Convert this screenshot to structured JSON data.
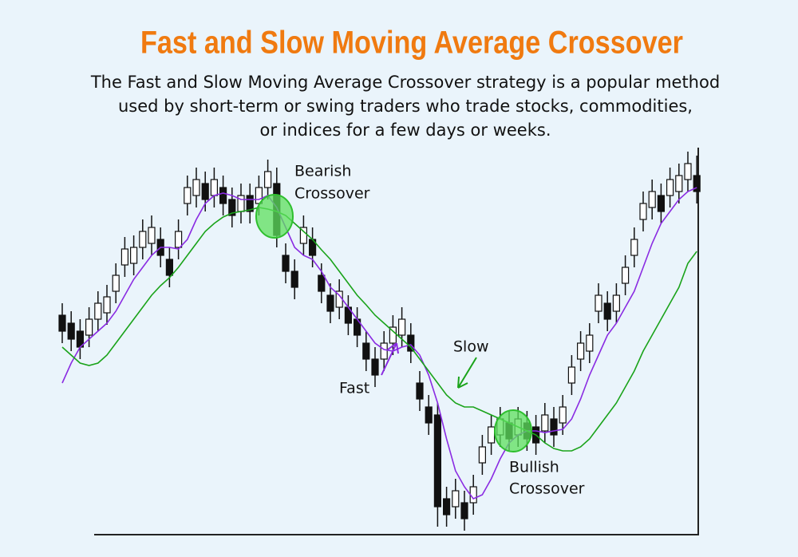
{
  "chart_data": {
    "type": "candlestick",
    "title": "Fast and Slow Moving Average Crossover",
    "description": [
      "The Fast and Slow Moving Average Crossover strategy is a popular method",
      "used by short-term or swing traders who trade stocks, commodities,",
      "or indices for a few days or weeks."
    ],
    "annotations": [
      "Bearish",
      "Crossover",
      "Slow",
      "Fast",
      "Bullish",
      "Crossover"
    ],
    "ylim": [
      0,
      485
    ],
    "up_color": "#ffffff",
    "down_color": "#111111",
    "open": [
      275,
      265,
      255,
      250,
      270,
      278,
      305,
      338,
      340,
      360,
      365,
      370,
      345,
      360,
      415,
      425,
      440,
      425,
      435,
      420,
      405,
      425,
      415,
      435,
      440,
      350,
      330,
      365,
      370,
      325,
      300,
      285,
      285,
      270,
      240,
      220,
      220,
      240,
      250,
      250,
      190,
      160,
      150,
      45,
      35,
      40,
      40,
      90,
      115,
      125,
      140,
      125,
      140,
      135,
      130,
      145,
      140,
      190,
      220,
      230,
      280,
      290,
      280,
      315,
      350,
      395,
      410,
      425,
      425,
      430,
      445,
      450
    ],
    "high": [
      290,
      280,
      270,
      285,
      305,
      313,
      340,
      373,
      375,
      395,
      400,
      385,
      360,
      395,
      450,
      460,
      455,
      460,
      450,
      435,
      440,
      440,
      450,
      470,
      460,
      365,
      345,
      400,
      385,
      340,
      315,
      320,
      300,
      285,
      255,
      235,
      255,
      275,
      285,
      265,
      205,
      175,
      165,
      60,
      70,
      55,
      75,
      125,
      150,
      160,
      155,
      160,
      155,
      150,
      165,
      160,
      175,
      225,
      255,
      265,
      315,
      305,
      315,
      350,
      385,
      430,
      445,
      440,
      460,
      465,
      480,
      475
    ],
    "low": [
      240,
      230,
      220,
      235,
      255,
      263,
      290,
      323,
      325,
      345,
      350,
      335,
      310,
      345,
      400,
      410,
      405,
      410,
      400,
      385,
      390,
      390,
      400,
      420,
      360,
      315,
      295,
      350,
      335,
      290,
      265,
      270,
      250,
      235,
      205,
      185,
      205,
      225,
      235,
      215,
      155,
      125,
      10,
      10,
      20,
      5,
      25,
      75,
      100,
      110,
      105,
      110,
      105,
      100,
      115,
      110,
      125,
      175,
      205,
      215,
      265,
      255,
      265,
      300,
      335,
      380,
      395,
      390,
      410,
      415,
      430,
      415
    ],
    "close": [
      255,
      245,
      235,
      270,
      290,
      298,
      325,
      358,
      360,
      380,
      385,
      350,
      325,
      380,
      435,
      445,
      420,
      445,
      415,
      400,
      425,
      405,
      435,
      455,
      375,
      330,
      310,
      385,
      350,
      305,
      280,
      305,
      265,
      250,
      220,
      200,
      240,
      260,
      270,
      230,
      170,
      140,
      35,
      25,
      55,
      20,
      60,
      110,
      135,
      145,
      120,
      145,
      120,
      115,
      150,
      125,
      160,
      210,
      240,
      250,
      300,
      270,
      300,
      335,
      370,
      415,
      430,
      405,
      445,
      450,
      465,
      430
    ],
    "series": [
      {
        "name": "Fast",
        "color": "#8a2be2",
        "values": [
          190,
          215,
          235,
          245,
          255,
          265,
          280,
          300,
          320,
          335,
          350,
          360,
          360,
          358,
          370,
          395,
          415,
          425,
          428,
          425,
          420,
          420,
          420,
          425,
          410,
          385,
          360,
          350,
          345,
          330,
          310,
          300,
          285,
          270,
          255,
          240,
          232,
          230,
          235,
          238,
          225,
          200,
          165,
          120,
          80,
          60,
          45,
          50,
          70,
          95,
          115,
          125,
          130,
          130,
          128,
          130,
          132,
          145,
          170,
          200,
          225,
          250,
          265,
          285,
          305,
          335,
          365,
          390,
          405,
          420,
          430,
          435
        ]
      },
      {
        "name": "Slow",
        "color": "#1aa31a",
        "values": [
          235,
          225,
          215,
          212,
          215,
          225,
          240,
          255,
          270,
          285,
          300,
          312,
          322,
          335,
          350,
          365,
          380,
          390,
          398,
          403,
          405,
          407,
          410,
          408,
          405,
          400,
          390,
          380,
          370,
          357,
          345,
          330,
          315,
          300,
          288,
          275,
          265,
          255,
          245,
          235,
          220,
          205,
          190,
          175,
          165,
          160,
          160,
          155,
          150,
          145,
          140,
          135,
          130,
          125,
          115,
          108,
          105,
          105,
          110,
          120,
          135,
          150,
          165,
          185,
          205,
          230,
          250,
          270,
          290,
          310,
          340,
          355
        ]
      }
    ]
  }
}
